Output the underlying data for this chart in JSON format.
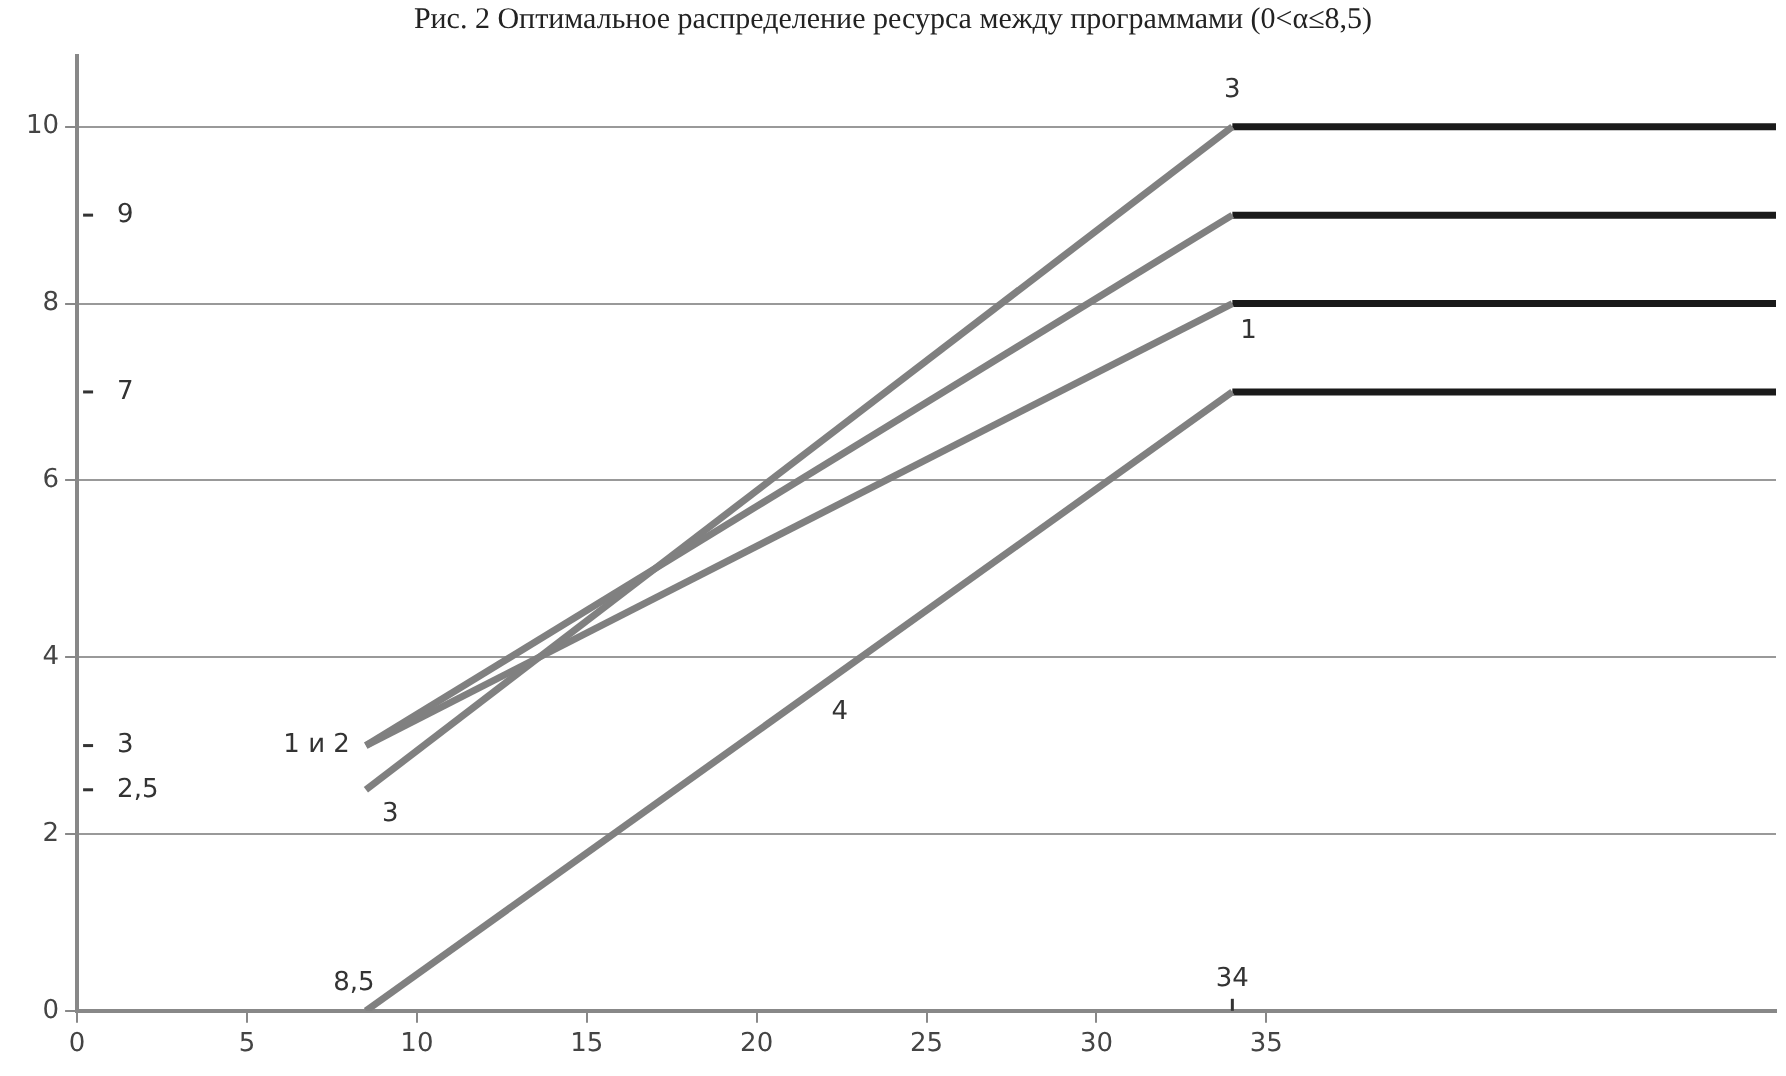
{
  "chart_data": {
    "type": "line",
    "title": "Рис. 2 Оптимальное распределение ресурса между программами (0<α≤8,5)",
    "xlim": [
      0,
      50
    ],
    "xticks": [
      0,
      5,
      10,
      15,
      20,
      25,
      30,
      35
    ],
    "ylim": [
      0,
      10.8
    ],
    "yticks": [
      0,
      2,
      4,
      6,
      8,
      10
    ],
    "grid": "y",
    "legend": false,
    "marker": "none",
    "line_style": "solid",
    "series": [
      {
        "x": [
          8.5,
          34
        ],
        "values": [
          3,
          8
        ],
        "color": "#808080"
      },
      {
        "x": [
          8.5,
          34
        ],
        "values": [
          3,
          9
        ],
        "color": "#808080"
      },
      {
        "x": [
          8.5,
          34
        ],
        "values": [
          2.5,
          10
        ],
        "color": "#808080"
      },
      {
        "x": [
          8.5,
          34
        ],
        "values": [
          0,
          7
        ],
        "color": "#808080"
      },
      {
        "x": [
          34,
          50
        ],
        "values": [
          10,
          10
        ],
        "color": "#1a1a1a"
      },
      {
        "x": [
          34,
          50
        ],
        "values": [
          9,
          9
        ],
        "color": "#1a1a1a"
      },
      {
        "x": [
          34,
          50
        ],
        "values": [
          8,
          8
        ],
        "color": "#1a1a1a"
      },
      {
        "x": [
          34,
          50
        ],
        "values": [
          7,
          7
        ],
        "color": "#1a1a1a"
      }
    ],
    "ref_lines": [
      {
        "axis": "y",
        "value": 9,
        "label": "9"
      },
      {
        "axis": "y",
        "value": 7,
        "label": "7"
      },
      {
        "axis": "y",
        "value": 3,
        "label": "3"
      },
      {
        "axis": "y",
        "value": 2.5,
        "label": "2,5"
      },
      {
        "axis": "x",
        "value": 34,
        "label": "34"
      }
    ],
    "annotations": [
      {
        "text": "1 и 2",
        "x": 8.5,
        "y": 3
      },
      {
        "text": "3",
        "x": 8.5,
        "y": 2.5
      },
      {
        "text": "4",
        "x": 21.5,
        "y": 3.6
      },
      {
        "text": "3",
        "x": 34,
        "y": 10
      },
      {
        "text": "1",
        "x": 34,
        "y": 8
      },
      {
        "text": "8,5",
        "x": 8.5,
        "y": 0
      }
    ]
  }
}
